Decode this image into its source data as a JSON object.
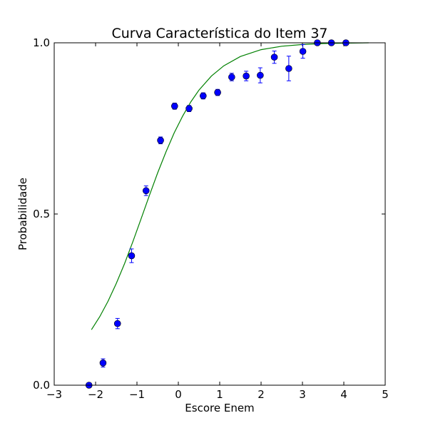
{
  "chart_data": {
    "type": "scatter",
    "title": "Curva Característica do Item 37",
    "xlabel": "Escore Enem",
    "ylabel": "Probabilidade",
    "xlim": [
      -3,
      5
    ],
    "ylim": [
      0,
      1
    ],
    "xticks": [
      -3,
      -2,
      -1,
      0,
      1,
      2,
      3,
      4,
      5
    ],
    "xtick_labels": [
      "−3",
      "−2",
      "−1",
      "0",
      "1",
      "2",
      "3",
      "4",
      "5"
    ],
    "yticks": [
      0,
      0.5,
      1
    ],
    "ytick_labels": [
      "0.0",
      "0.5",
      "1.0"
    ],
    "grid": false,
    "colors": {
      "points": "#0000ff",
      "errorbars": "#0000ff",
      "curve": "#008000"
    },
    "points": [
      {
        "x": -2.16,
        "y": 0.0,
        "err": 0.0
      },
      {
        "x": -1.82,
        "y": 0.065,
        "err": 0.012
      },
      {
        "x": -1.47,
        "y": 0.18,
        "err": 0.015
      },
      {
        "x": -1.13,
        "y": 0.378,
        "err": 0.02
      },
      {
        "x": -0.78,
        "y": 0.568,
        "err": 0.014
      },
      {
        "x": -0.43,
        "y": 0.715,
        "err": 0.01
      },
      {
        "x": -0.09,
        "y": 0.815,
        "err": 0.009
      },
      {
        "x": 0.26,
        "y": 0.808,
        "err": 0.009
      },
      {
        "x": 0.6,
        "y": 0.845,
        "err": 0.009
      },
      {
        "x": 0.95,
        "y": 0.855,
        "err": 0.009
      },
      {
        "x": 1.29,
        "y": 0.9,
        "err": 0.011
      },
      {
        "x": 1.64,
        "y": 0.903,
        "err": 0.014
      },
      {
        "x": 1.98,
        "y": 0.905,
        "err": 0.022
      },
      {
        "x": 2.32,
        "y": 0.958,
        "err": 0.018
      },
      {
        "x": 2.67,
        "y": 0.925,
        "err": 0.036
      },
      {
        "x": 3.01,
        "y": 0.975,
        "err": 0.02
      },
      {
        "x": 3.36,
        "y": 1.0,
        "err": 0.0
      },
      {
        "x": 3.7,
        "y": 1.0,
        "err": 0.0
      },
      {
        "x": 4.05,
        "y": 1.0,
        "err": 0.0
      }
    ],
    "curve": {
      "x": [
        -2.1,
        -1.9,
        -1.7,
        -1.5,
        -1.3,
        -1.1,
        -0.9,
        -0.7,
        -0.5,
        -0.3,
        -0.1,
        0.1,
        0.3,
        0.5,
        0.8,
        1.1,
        1.5,
        2.0,
        2.5,
        3.0,
        3.5,
        4.0,
        4.6
      ],
      "y": [
        0.162,
        0.2,
        0.245,
        0.297,
        0.355,
        0.419,
        0.486,
        0.554,
        0.62,
        0.681,
        0.737,
        0.785,
        0.827,
        0.862,
        0.903,
        0.933,
        0.96,
        0.98,
        0.99,
        0.995,
        0.998,
        0.999,
        1.0
      ]
    }
  }
}
